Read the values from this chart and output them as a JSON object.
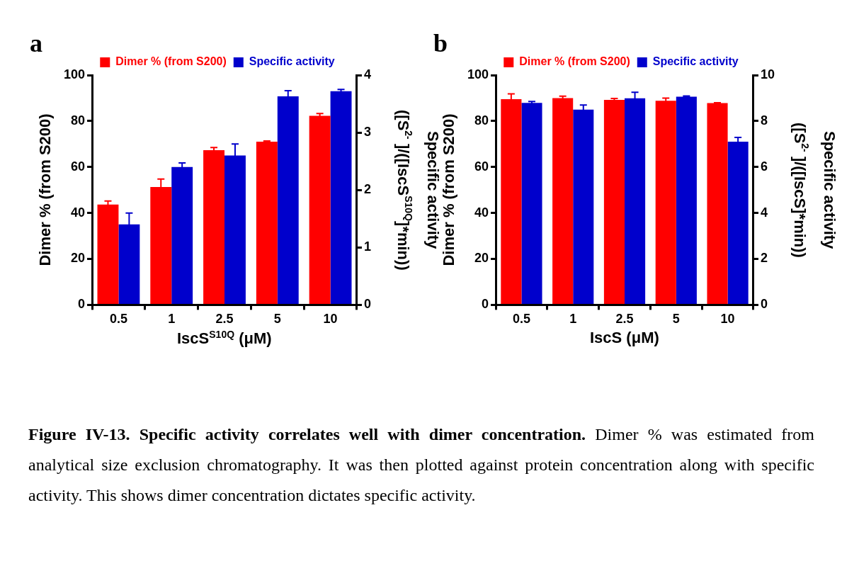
{
  "chart_data": [
    {
      "type": "bar",
      "title": "a",
      "categories": [
        "0.5",
        "1",
        "2.5",
        "5",
        "10"
      ],
      "xlabel": "IscS$^{S10Q}$ (μM)",
      "ylabel": "Dimer % (from S200)",
      "y2label": "Specific activity\n([S$^{2-}$ ]/([IscS$^{S10Q}$]*min))",
      "ylim": [
        0,
        100
      ],
      "yticks": [
        0,
        20,
        40,
        60,
        80,
        100
      ],
      "y2lim": [
        0,
        4
      ],
      "y2ticks": [
        0,
        1,
        2,
        3,
        4
      ],
      "legend": "top",
      "grid": false,
      "series": [
        {
          "name": "Dimer % (from S200)",
          "color": "#ff0000",
          "values": [
            43.7,
            51.3,
            67.3,
            71.0,
            82.3
          ],
          "errors": [
            1.5,
            3.5,
            1.2,
            0.3,
            1.0
          ]
        },
        {
          "name": "Specific activity",
          "color": "#0000cc",
          "axis": "y2",
          "values": [
            1.4,
            2.4,
            2.6,
            3.63,
            3.72
          ],
          "errors": [
            0.2,
            0.07,
            0.2,
            0.1,
            0.03
          ]
        }
      ]
    },
    {
      "type": "bar",
      "title": "b",
      "categories": [
        "0.5",
        "1",
        "2.5",
        "5",
        "10"
      ],
      "xlabel": "IscS (μM)",
      "ylabel": "Dimer % (from S200)",
      "y2label": "Specific activity\n([S$^{2-}$ ]/([IscS]*min))",
      "ylim": [
        0,
        100
      ],
      "yticks": [
        0,
        20,
        40,
        60,
        80,
        100
      ],
      "y2lim": [
        0,
        10
      ],
      "y2ticks": [
        0,
        2,
        4,
        6,
        8,
        10
      ],
      "legend": "top",
      "grid": false,
      "series": [
        {
          "name": "Dimer % (from S200)",
          "color": "#ff0000",
          "values": [
            89.5,
            90.0,
            89.2,
            88.8,
            87.8
          ],
          "errors": [
            2.3,
            0.8,
            0.6,
            1.2,
            0.2
          ]
        },
        {
          "name": "Specific activity",
          "color": "#0000cc",
          "axis": "y2",
          "values": [
            8.79,
            8.5,
            8.99,
            9.06,
            7.1
          ],
          "errors": [
            0.06,
            0.2,
            0.26,
            0.03,
            0.19
          ]
        }
      ]
    },
    {
      "type": "other",
      "annotations": [
        "Figure IV-13. Specific activity correlates well with dimer concentration.",
        "Dimer % was estimated from analytical size exclusion chromatography. It was then plotted against protein concentration along with specific activity. This shows dimer concentration dictates specific activity."
      ]
    }
  ]
}
